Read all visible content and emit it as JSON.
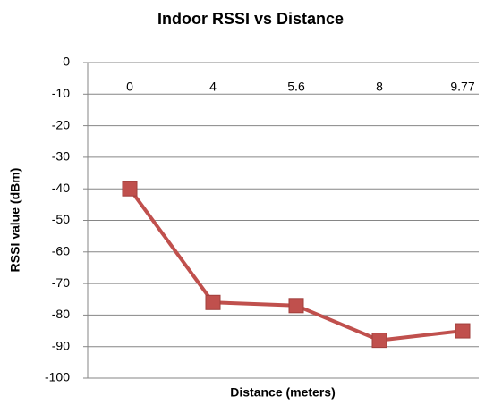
{
  "chart_data": {
    "type": "line",
    "title": "Indoor RSSI vs Distance",
    "x_label": "Distance (meters)",
    "y_label": "RSSI value (dBm)",
    "categories": [
      "0",
      "4",
      "5.6",
      "8",
      "9.77"
    ],
    "series": [
      {
        "name": "RSSI",
        "color": "#c0504d",
        "values": [
          -40,
          -76,
          -77,
          -88,
          -85
        ]
      }
    ],
    "ylim": [
      -100,
      0
    ],
    "yticks": [
      0,
      -10,
      -20,
      -30,
      -40,
      -50,
      -60,
      -70,
      -80,
      -90,
      -100
    ],
    "grid": true,
    "marker": "square"
  }
}
